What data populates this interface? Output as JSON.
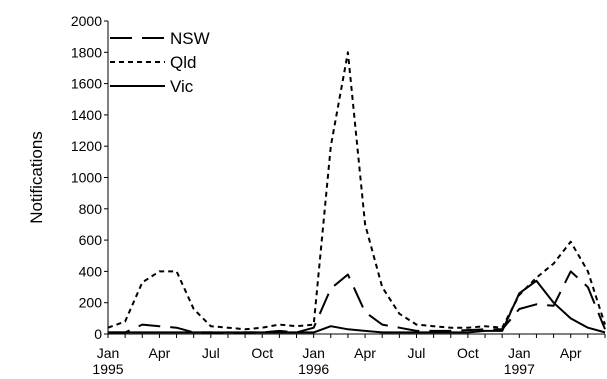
{
  "chart_data": {
    "type": "line",
    "title": "",
    "xlabel": "",
    "ylabel": "Notifications",
    "ylim": [
      0,
      2000
    ],
    "yticks": [
      0,
      200,
      400,
      600,
      800,
      1000,
      1200,
      1400,
      1600,
      1800,
      2000
    ],
    "x_months": [
      "1995-01",
      "1995-02",
      "1995-03",
      "1995-04",
      "1995-05",
      "1995-06",
      "1995-07",
      "1995-08",
      "1995-09",
      "1995-10",
      "1995-11",
      "1995-12",
      "1996-01",
      "1996-02",
      "1996-03",
      "1996-04",
      "1996-05",
      "1996-06",
      "1996-07",
      "1996-08",
      "1996-09",
      "1996-10",
      "1996-11",
      "1996-12",
      "1997-01",
      "1997-02",
      "1997-03",
      "1997-04",
      "1997-05",
      "1997-06"
    ],
    "xtick_labels": [
      {
        "month": "1995-01",
        "lines": [
          "Jan",
          "1995"
        ]
      },
      {
        "month": "1995-04",
        "lines": [
          "Apr"
        ]
      },
      {
        "month": "1995-07",
        "lines": [
          "Jul"
        ]
      },
      {
        "month": "1995-10",
        "lines": [
          "Oct"
        ]
      },
      {
        "month": "1996-01",
        "lines": [
          "Jan",
          "1996"
        ]
      },
      {
        "month": "1996-04",
        "lines": [
          "Apr"
        ]
      },
      {
        "month": "1996-07",
        "lines": [
          "Jul"
        ]
      },
      {
        "month": "1996-10",
        "lines": [
          "Oct"
        ]
      },
      {
        "month": "1997-01",
        "lines": [
          "Jan",
          "1997"
        ]
      },
      {
        "month": "1997-04",
        "lines": [
          "Apr"
        ]
      }
    ],
    "legend_position": "top-left",
    "grid": false,
    "series": [
      {
        "name": "NSW",
        "style": "long-dash",
        "color": "#000000",
        "values": [
          10,
          10,
          60,
          50,
          40,
          10,
          10,
          5,
          10,
          10,
          20,
          10,
          40,
          290,
          380,
          140,
          60,
          40,
          20,
          20,
          20,
          25,
          30,
          30,
          160,
          190,
          180,
          400,
          300,
          30
        ]
      },
      {
        "name": "Qld",
        "style": "short-dash",
        "color": "#000000",
        "values": [
          40,
          80,
          330,
          400,
          400,
          160,
          50,
          40,
          30,
          40,
          60,
          50,
          60,
          1200,
          1800,
          700,
          300,
          130,
          60,
          50,
          40,
          40,
          50,
          40,
          250,
          360,
          450,
          590,
          400,
          60
        ]
      },
      {
        "name": "Vic",
        "style": "solid",
        "color": "#000000",
        "values": [
          10,
          10,
          10,
          10,
          10,
          10,
          10,
          10,
          10,
          10,
          10,
          10,
          10,
          50,
          30,
          20,
          10,
          10,
          10,
          10,
          10,
          10,
          20,
          20,
          260,
          340,
          200,
          100,
          40,
          10
        ]
      }
    ]
  }
}
